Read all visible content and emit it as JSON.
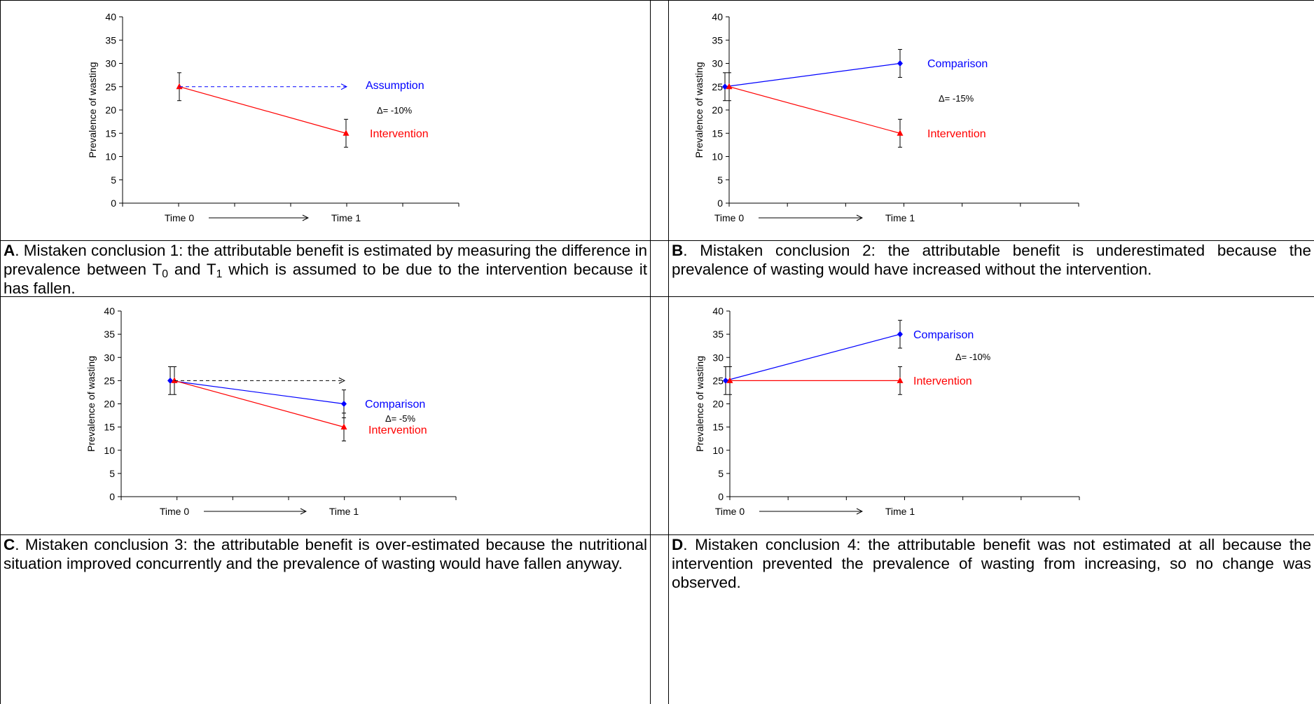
{
  "panels": [
    {
      "id": "A",
      "caption_letter": "A",
      "caption_before_sub1": ".  Mistaken conclusion 1: the attributable benefit is estimated by measuring the difference in prevalence between T",
      "sub1": "0",
      "caption_mid": " and T",
      "sub2": "1",
      "caption_after": " which is assumed to be due to the intervention because it has fallen."
    },
    {
      "id": "B",
      "caption_letter": "B",
      "caption_text": ". Mistaken conclusion 2: the attributable benefit is underestimated because the prevalence of wasting would have increased without the intervention."
    },
    {
      "id": "C",
      "caption_letter": "C",
      "caption_text": ". Mistaken conclusion 3: the attributable benefit is over-estimated because the nutritional situation improved concurrently and the prevalence of wasting would have fallen anyway."
    },
    {
      "id": "D",
      "caption_letter": "D",
      "caption_text": ".  Mistaken conclusion 4: the attributable benefit was not estimated at all because the intervention prevented the prevalence of wasting from increasing, so no change was observed."
    }
  ],
  "chart_data": [
    {
      "panel": "A",
      "type": "line",
      "ylabel": "Prevalence of wasting",
      "ylim": [
        0,
        40
      ],
      "yticks": [
        0,
        5,
        10,
        15,
        20,
        25,
        30,
        35,
        40
      ],
      "categories": [
        "Time 0",
        "Time 1"
      ],
      "series": [
        {
          "name": "Intervention",
          "values": [
            25,
            15
          ],
          "errors": [
            3,
            3
          ],
          "color": "#ff0000",
          "marker": "triangle",
          "dashed": false,
          "show_start_marker": true
        },
        {
          "name": "Assumption",
          "values": [
            25,
            25
          ],
          "errors": null,
          "color": "#0000ff",
          "marker": "none",
          "dashed": true,
          "arrow": true,
          "show_start_marker": false
        }
      ],
      "delta_label": "Δ= -10%",
      "time_arrow": true,
      "grid": false
    },
    {
      "panel": "B",
      "type": "line",
      "ylabel": "Prevalence of wasting",
      "ylim": [
        0,
        40
      ],
      "yticks": [
        0,
        5,
        10,
        15,
        20,
        25,
        30,
        35,
        40
      ],
      "categories": [
        "Time 0",
        "Time 1"
      ],
      "series": [
        {
          "name": "Comparison",
          "values": [
            25,
            30
          ],
          "errors": [
            3,
            3
          ],
          "color": "#0000ff",
          "marker": "diamond",
          "dashed": false,
          "show_start_marker": true
        },
        {
          "name": "Intervention",
          "values": [
            25,
            15
          ],
          "errors": [
            3,
            3
          ],
          "color": "#ff0000",
          "marker": "triangle",
          "dashed": false,
          "show_start_marker": true
        }
      ],
      "delta_label": "Δ= -15%",
      "time_arrow": true,
      "grid": false
    },
    {
      "panel": "C",
      "type": "line",
      "ylabel": "Prevalence of wasting",
      "ylim": [
        0,
        40
      ],
      "yticks": [
        0,
        5,
        10,
        15,
        20,
        25,
        30,
        35,
        40
      ],
      "categories": [
        "Time 0",
        "Time 1"
      ],
      "series": [
        {
          "name": "Comparison",
          "values": [
            25,
            20
          ],
          "errors": [
            3,
            3
          ],
          "color": "#0000ff",
          "marker": "diamond",
          "dashed": false,
          "show_start_marker": true
        },
        {
          "name": "Intervention",
          "values": [
            25,
            15
          ],
          "errors": [
            3,
            3
          ],
          "color": "#ff0000",
          "marker": "triangle",
          "dashed": false,
          "show_start_marker": true
        },
        {
          "name": "",
          "values": [
            25,
            25
          ],
          "errors": null,
          "color": "#000000",
          "marker": "none",
          "dashed": true,
          "arrow": true,
          "show_start_marker": false
        }
      ],
      "delta_label": "Δ= -5%",
      "time_arrow": true,
      "grid": false
    },
    {
      "panel": "D",
      "type": "line",
      "ylabel": "Prevalence of wasting",
      "ylim": [
        0,
        40
      ],
      "yticks": [
        0,
        5,
        10,
        15,
        20,
        25,
        30,
        35,
        40
      ],
      "categories": [
        "Time 0",
        "Time 1"
      ],
      "series": [
        {
          "name": "Comparison",
          "values": [
            25,
            35
          ],
          "errors": [
            3,
            3
          ],
          "color": "#0000ff",
          "marker": "diamond",
          "dashed": false,
          "show_start_marker": true
        },
        {
          "name": "Intervention",
          "values": [
            25,
            25
          ],
          "errors": [
            3,
            3
          ],
          "color": "#ff0000",
          "marker": "triangle",
          "dashed": false,
          "show_start_marker": true
        }
      ],
      "delta_label": "Δ= -10%",
      "time_arrow": true,
      "grid": false
    }
  ]
}
